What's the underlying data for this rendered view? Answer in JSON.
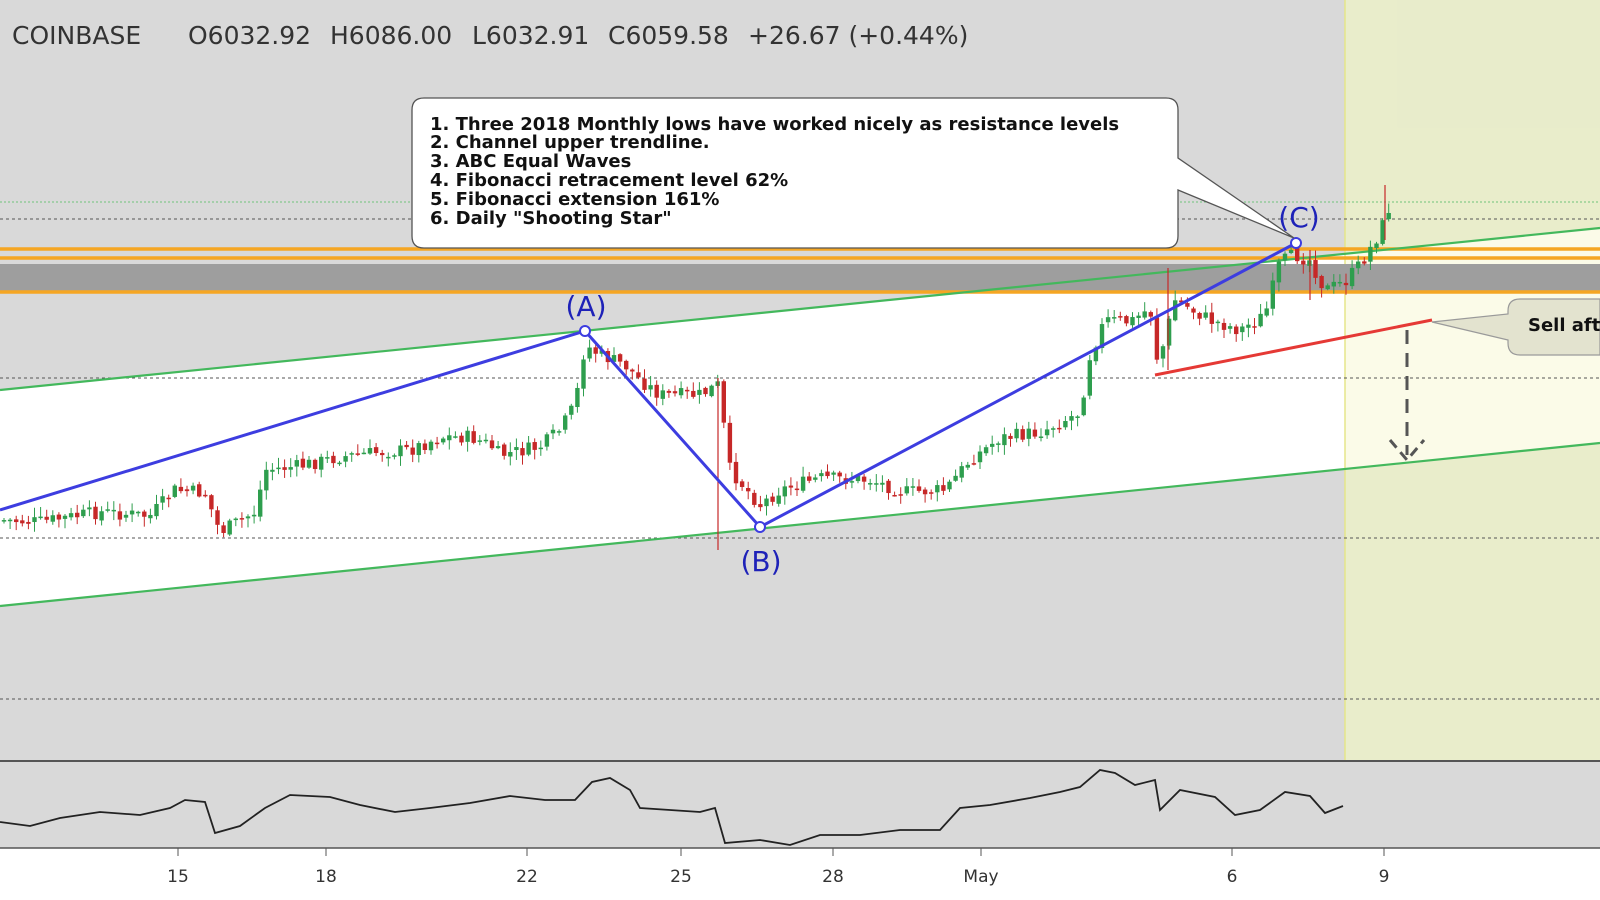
{
  "header": {
    "exchange": "COINBASE",
    "open": "O6032.92",
    "high": "H6086.00",
    "low": "L6032.91",
    "close": "C6059.58",
    "change": "+26.67 (+0.44%)"
  },
  "annotation": {
    "lines": [
      "1. Three 2018 Monthly lows have worked nicely as resistance levels",
      "2. Channel upper trendline.",
      "3. ABC Equal Waves",
      "4. Fibonacci retracement level 62%",
      "5. Fibonacci extension 161%",
      "6. Daily \"Shooting Star\""
    ]
  },
  "sell_callout": "Sell aft",
  "colors": {
    "background_gray": "#d9d9d9",
    "channel_fill": "#ffffff",
    "forecast_zone": "#eaeec9",
    "up_candle": "#2e9e4e",
    "down_candle": "#c62828",
    "wave_line": "#3d3de0",
    "channel_line": "#43b85c",
    "resistance": "#f5a623",
    "support_line": "#e53935",
    "wave_label": "#1e22b8"
  },
  "chart_data": {
    "type": "candlestick",
    "x_ticks": [
      "15",
      "18",
      "22",
      "25",
      "28",
      "May",
      "6",
      "9"
    ],
    "waves": [
      {
        "label": "(A)",
        "time": 22.9
      },
      {
        "label": "(B)",
        "time": 26.6
      },
      {
        "label": "(C)",
        "time": 37.2
      }
    ],
    "indicator": "oscillator"
  }
}
